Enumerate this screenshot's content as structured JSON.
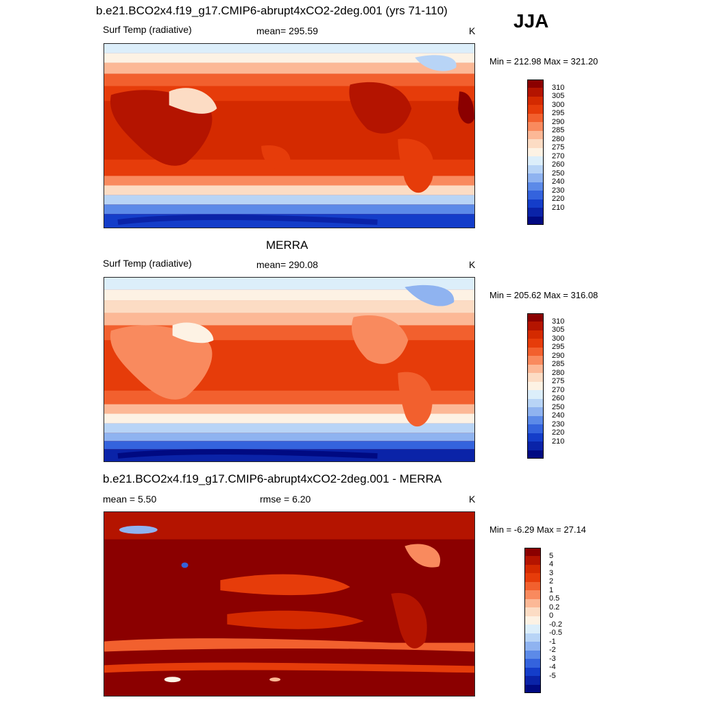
{
  "season": "JJA",
  "panels": [
    {
      "title": "b.e21.BCO2x4.f19_g17.CMIP6-abrupt4xCO2-2deg.001 (yrs 71-110)",
      "left_label": "Surf Temp (radiative)",
      "center_label": "mean= 295.59",
      "units": "K",
      "minmax": "Min = 212.98 Max = 321.20",
      "colorbar": {
        "colors": [
          "#8b0000",
          "#b41400",
          "#d42a00",
          "#e63c0a",
          "#f2602e",
          "#f98a5e",
          "#fcb896",
          "#fcdcc4",
          "#fdf2e4",
          "#dceefa",
          "#b8d4f6",
          "#8fb3f0",
          "#5c8ae8",
          "#3463dd",
          "#143dc9",
          "#0a23a8",
          "#000a82"
        ],
        "labels": [
          "310",
          "305",
          "300",
          "295",
          "290",
          "285",
          "280",
          "275",
          "270",
          "260",
          "250",
          "240",
          "230",
          "220",
          "210"
        ]
      }
    },
    {
      "title": "MERRA",
      "left_label": "Surf Temp (radiative)",
      "center_label": "mean= 290.08",
      "units": "K",
      "minmax": "Min = 205.62 Max = 316.08",
      "colorbar": {
        "colors": [
          "#8b0000",
          "#b41400",
          "#d42a00",
          "#e63c0a",
          "#f2602e",
          "#f98a5e",
          "#fcb896",
          "#fcdcc4",
          "#fdf2e4",
          "#dceefa",
          "#b8d4f6",
          "#8fb3f0",
          "#5c8ae8",
          "#3463dd",
          "#143dc9",
          "#0a23a8",
          "#000a82"
        ],
        "labels": [
          "310",
          "305",
          "300",
          "295",
          "290",
          "285",
          "280",
          "275",
          "270",
          "260",
          "250",
          "240",
          "230",
          "220",
          "210"
        ]
      }
    },
    {
      "title": "b.e21.BCO2x4.f19_g17.CMIP6-abrupt4xCO2-2deg.001 - MERRA",
      "left_label": "mean =   5.50",
      "center_label": "rmse =   6.20",
      "units": "K",
      "minmax": "Min =  -6.29 Max =  27.14",
      "colorbar": {
        "colors": [
          "#8b0000",
          "#b41400",
          "#d42a00",
          "#e63c0a",
          "#f2602e",
          "#f98a5e",
          "#fcb896",
          "#fcdcc4",
          "#fdf2e4",
          "#dceefa",
          "#b8d4f6",
          "#8fb3f0",
          "#5c8ae8",
          "#3463dd",
          "#143dc9",
          "#0a23a8",
          "#000a82"
        ],
        "labels": [
          "5",
          "4",
          "3",
          "2",
          "1",
          "0.5",
          "0.2",
          "0",
          "-0.2",
          "-0.5",
          "-1",
          "-2",
          "-3",
          "-4",
          "-5"
        ]
      }
    }
  ]
}
